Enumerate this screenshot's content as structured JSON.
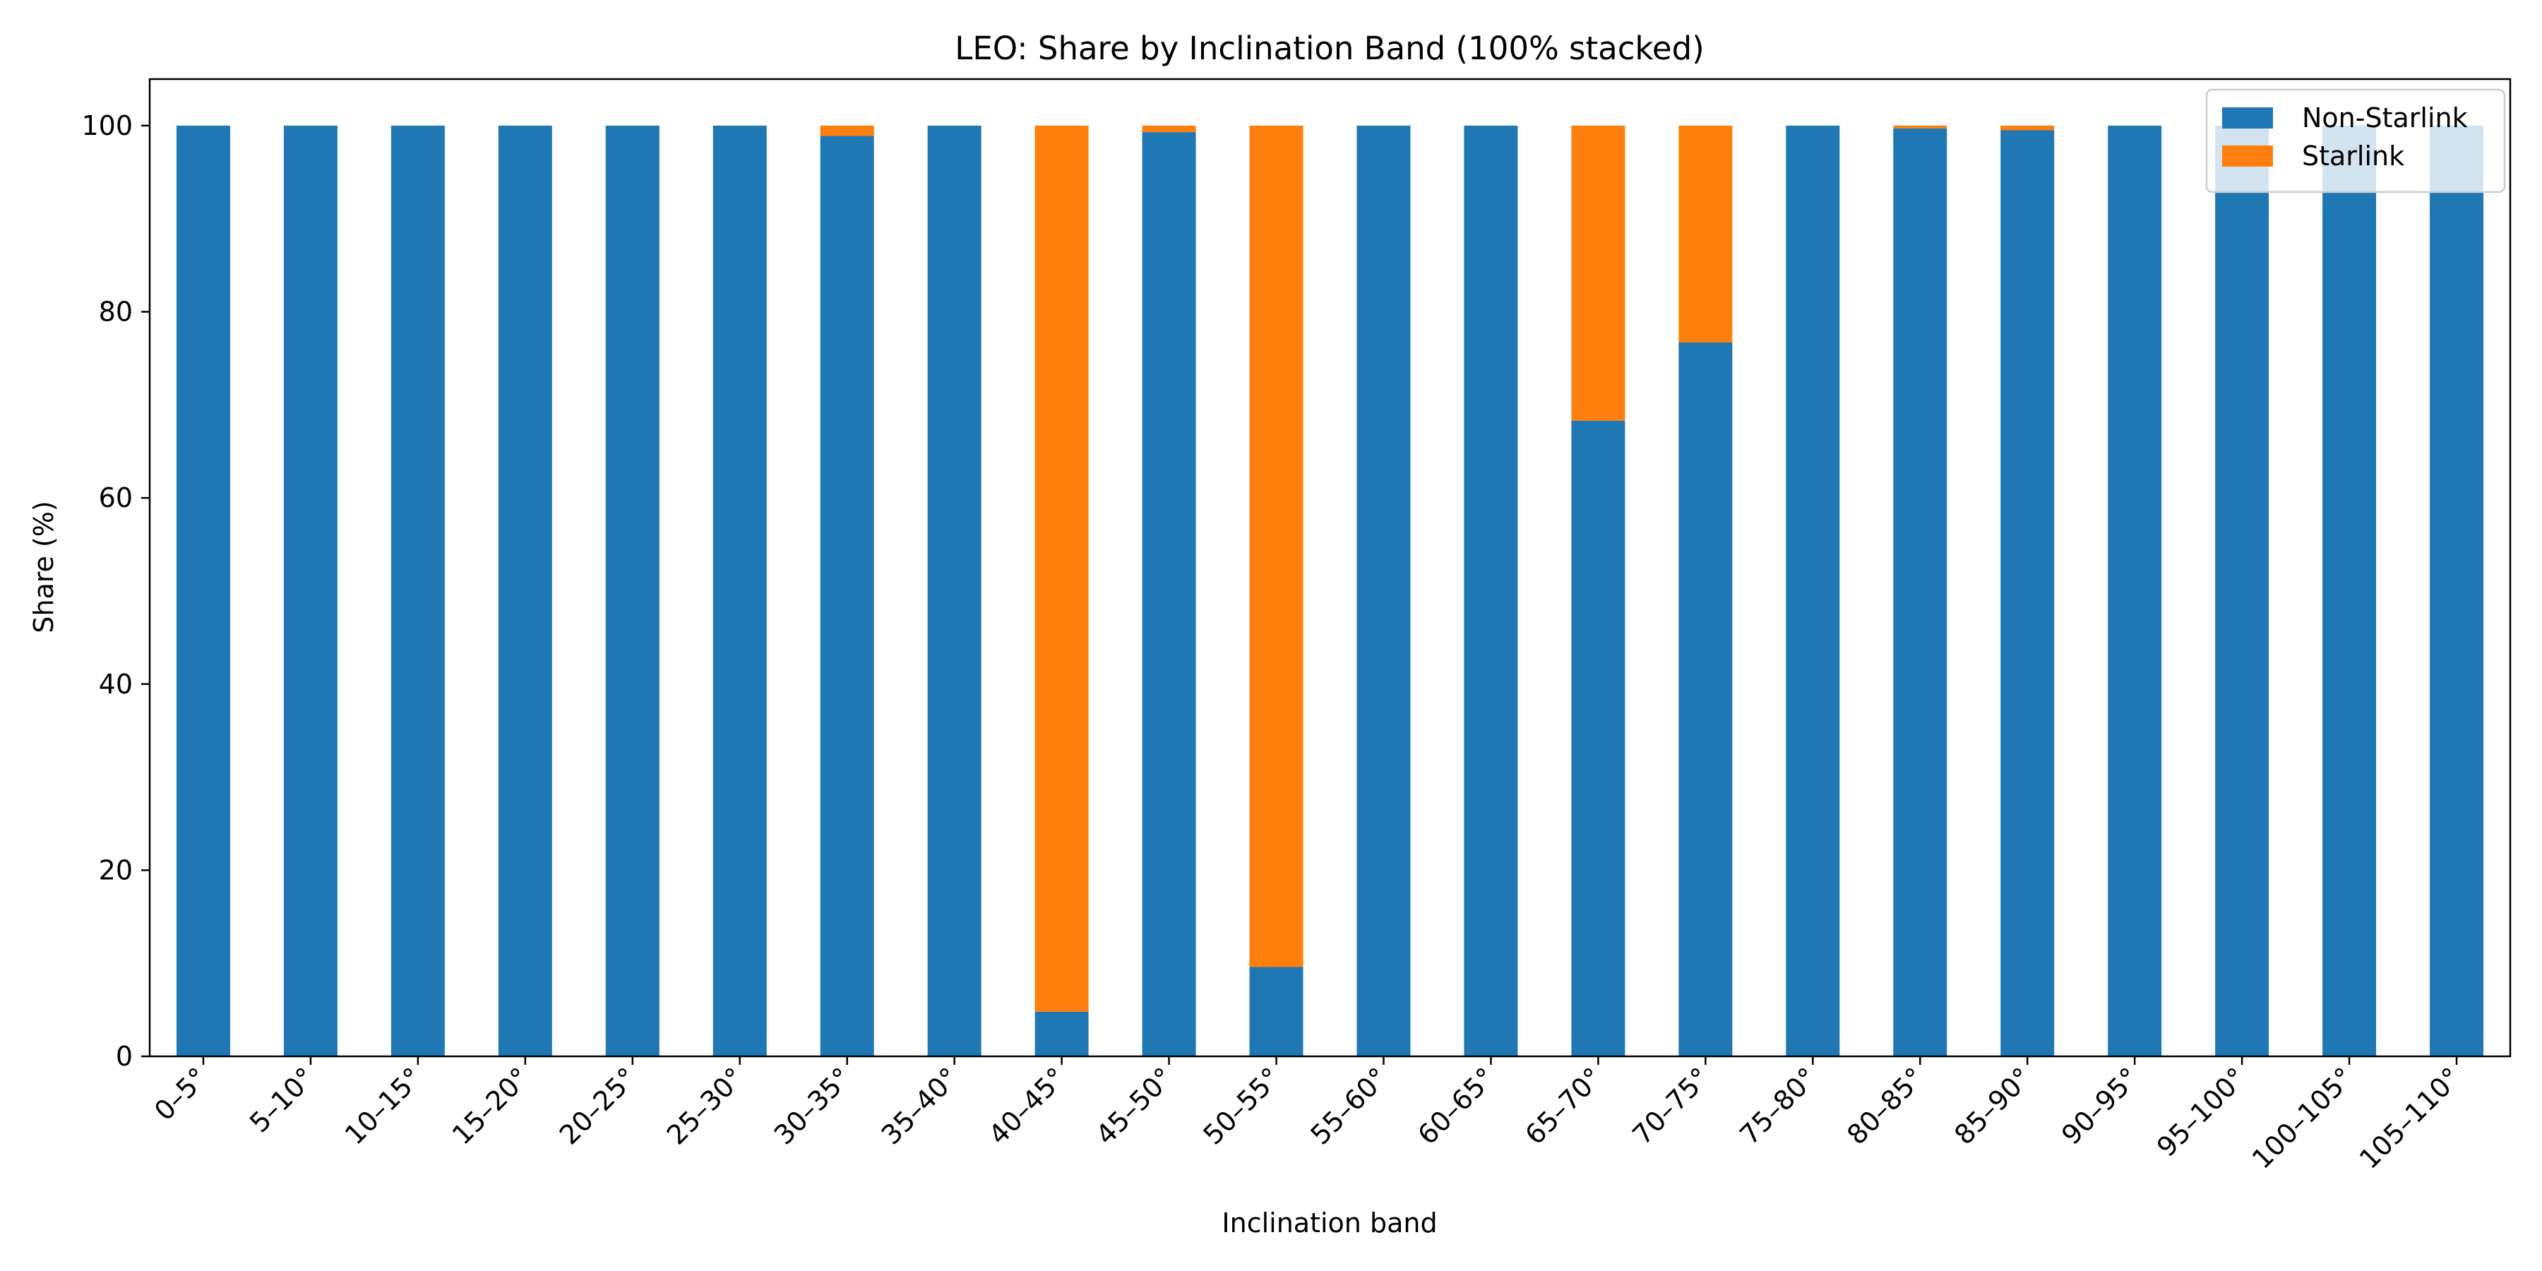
{
  "chart_data": {
    "type": "bar",
    "stacked": true,
    "title": "LEO: Share by Inclination Band (100% stacked)",
    "xlabel": "Inclination band",
    "ylabel": "Share (%)",
    "ylim": [
      0,
      105
    ],
    "yticks": [
      0,
      20,
      40,
      60,
      80,
      100
    ],
    "grid": false,
    "legend_position": "top-right",
    "categories": [
      "0–5°",
      "5–10°",
      "10–15°",
      "15–20°",
      "20–25°",
      "25–30°",
      "30–35°",
      "35–40°",
      "40–45°",
      "45–50°",
      "50–55°",
      "55–60°",
      "60–65°",
      "65–70°",
      "70–75°",
      "75–80°",
      "80–85°",
      "85–90°",
      "90–95°",
      "95–100°",
      "100–105°",
      "105–110°"
    ],
    "series": [
      {
        "name": "Non-Starlink",
        "color": "#1f77b4",
        "values": [
          100,
          100,
          100,
          100,
          100,
          100,
          98.9,
          100,
          4.8,
          99.3,
          9.6,
          100,
          100,
          68.3,
          76.7,
          100,
          99.7,
          99.5,
          100,
          100,
          100,
          100
        ]
      },
      {
        "name": "Starlink",
        "color": "#ff7f0e",
        "values": [
          0,
          0,
          0,
          0,
          0,
          0,
          1.1,
          0,
          95.2,
          0.7,
          90.4,
          0,
          0,
          31.7,
          23.3,
          0,
          0.3,
          0.5,
          0,
          0,
          0,
          0
        ]
      }
    ]
  }
}
